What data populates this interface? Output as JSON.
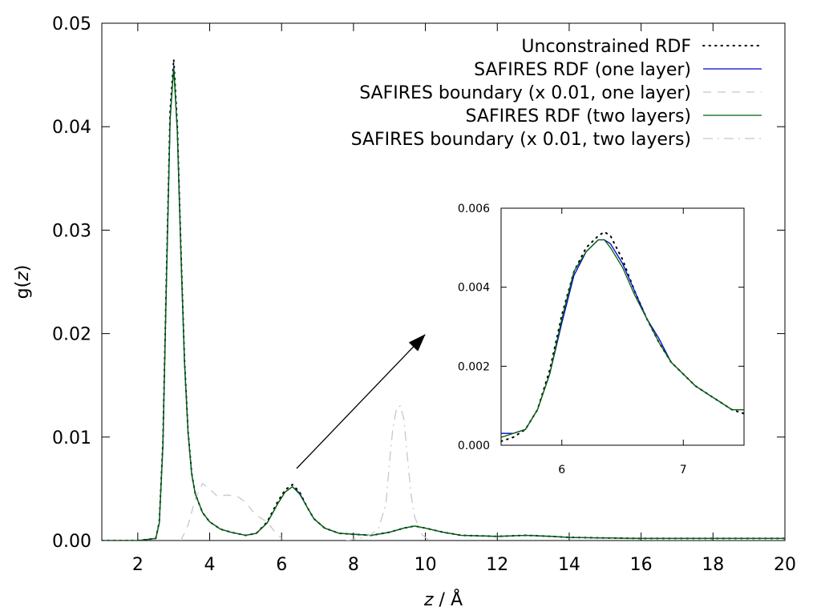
{
  "chart_data": [
    {
      "type": "line",
      "xlabel_var": "z",
      "xlabel_unit": " / Å",
      "ylabel_var": "z",
      "ylabel_prefix": "g(",
      "ylabel_suffix": ")",
      "xlim": [
        1,
        20
      ],
      "ylim": [
        0,
        0.05
      ],
      "xticks": [
        2,
        4,
        6,
        8,
        10,
        12,
        14,
        16,
        18,
        20
      ],
      "xtick_labels": [
        "2",
        "4",
        "6",
        "8",
        "10",
        "12",
        "14",
        "16",
        "18",
        "20"
      ],
      "yticks": [
        0,
        0.01,
        0.02,
        0.03,
        0.04,
        0.05
      ],
      "ytick_labels": [
        "0.00",
        "0.01",
        "0.02",
        "0.03",
        "0.04",
        "0.05"
      ],
      "legend_position": "top-right",
      "series": [
        {
          "name": "Unconstrained RDF",
          "color": "#000000",
          "style": "dotted",
          "x": [
            1.0,
            2.0,
            2.5,
            2.6,
            2.7,
            2.8,
            2.9,
            3.0,
            3.1,
            3.2,
            3.3,
            3.4,
            3.5,
            3.6,
            3.8,
            4.0,
            4.3,
            4.6,
            5.0,
            5.3,
            5.6,
            5.9,
            6.1,
            6.3,
            6.5,
            6.7,
            6.9,
            7.2,
            7.6,
            8.0,
            8.5,
            9.0,
            9.4,
            9.7,
            10.0,
            10.5,
            11.0,
            12.0,
            12.8,
            13.5,
            14.0,
            16.0,
            20.0
          ],
          "y": [
            0.0,
            0.0,
            0.0002,
            0.0018,
            0.0095,
            0.026,
            0.0415,
            0.0465,
            0.04,
            0.028,
            0.0175,
            0.0105,
            0.0065,
            0.0045,
            0.0027,
            0.0018,
            0.0011,
            0.0008,
            0.0005,
            0.0007,
            0.0018,
            0.0038,
            0.0049,
            0.0054,
            0.0047,
            0.0033,
            0.0021,
            0.0012,
            0.0007,
            0.0006,
            0.0005,
            0.0008,
            0.0012,
            0.0014,
            0.0012,
            0.0008,
            0.0005,
            0.0004,
            0.0005,
            0.0004,
            0.0003,
            0.0002,
            0.0002
          ]
        },
        {
          "name": "SAFIRES RDF (one layer)",
          "color": "#0000cc",
          "style": "solid",
          "x": [
            1.0,
            2.0,
            2.5,
            2.6,
            2.7,
            2.8,
            2.9,
            3.0,
            3.1,
            3.2,
            3.3,
            3.4,
            3.5,
            3.6,
            3.8,
            4.0,
            4.3,
            4.6,
            5.0,
            5.3,
            5.6,
            5.9,
            6.1,
            6.3,
            6.5,
            6.7,
            6.9,
            7.2,
            7.6,
            8.0,
            8.5,
            9.0,
            9.4,
            9.7,
            10.0,
            10.5,
            11.0,
            12.0,
            12.8,
            13.5,
            14.0,
            16.0,
            20.0
          ],
          "y": [
            0.0,
            0.0,
            0.0002,
            0.0017,
            0.0092,
            0.0255,
            0.0408,
            0.0458,
            0.0395,
            0.0277,
            0.0173,
            0.0104,
            0.0064,
            0.0045,
            0.0027,
            0.0018,
            0.0011,
            0.0008,
            0.0005,
            0.0007,
            0.0017,
            0.0036,
            0.0047,
            0.0052,
            0.0046,
            0.0033,
            0.0021,
            0.0012,
            0.0007,
            0.0006,
            0.0005,
            0.0008,
            0.0012,
            0.0014,
            0.0012,
            0.0008,
            0.0005,
            0.0004,
            0.0005,
            0.0004,
            0.0003,
            0.0002,
            0.0002
          ]
        },
        {
          "name": "SAFIRES boundary (x 0.01, one layer)",
          "color": "#c8c8c8",
          "style": "dashed",
          "x": [
            3.2,
            3.4,
            3.6,
            3.8,
            4.0,
            4.2,
            4.5,
            4.8,
            5.0,
            5.2,
            5.4,
            5.6,
            5.8,
            6.0
          ],
          "y": [
            0.0,
            0.0015,
            0.004,
            0.0055,
            0.005,
            0.0043,
            0.0044,
            0.0042,
            0.0037,
            0.0028,
            0.0022,
            0.0018,
            0.0009,
            0.0002
          ]
        },
        {
          "name": "SAFIRES RDF (two layers)",
          "color": "#006400",
          "style": "solid",
          "x": [
            1.0,
            2.0,
            2.5,
            2.6,
            2.7,
            2.8,
            2.9,
            3.0,
            3.1,
            3.2,
            3.3,
            3.4,
            3.5,
            3.6,
            3.8,
            4.0,
            4.3,
            4.6,
            5.0,
            5.3,
            5.6,
            5.9,
            6.1,
            6.3,
            6.5,
            6.7,
            6.9,
            7.2,
            7.6,
            8.0,
            8.5,
            9.0,
            9.4,
            9.7,
            10.0,
            10.5,
            11.0,
            12.0,
            12.8,
            13.5,
            14.0,
            16.0,
            20.0
          ],
          "y": [
            0.0,
            0.0,
            0.0002,
            0.0017,
            0.0092,
            0.0254,
            0.0407,
            0.0457,
            0.0394,
            0.0276,
            0.0172,
            0.0104,
            0.0064,
            0.0045,
            0.0027,
            0.0018,
            0.0011,
            0.0008,
            0.0005,
            0.0007,
            0.0017,
            0.0036,
            0.0047,
            0.0052,
            0.0045,
            0.0033,
            0.0021,
            0.0012,
            0.0007,
            0.0006,
            0.0005,
            0.0008,
            0.0012,
            0.0014,
            0.0012,
            0.0008,
            0.0005,
            0.0004,
            0.0005,
            0.0004,
            0.0003,
            0.0002,
            0.0002
          ]
        },
        {
          "name": "SAFIRES boundary (x 0.01, two layers)",
          "color": "#c8c8c8",
          "style": "dashdot",
          "x": [
            7.8,
            8.2,
            8.5,
            8.7,
            8.9,
            9.0,
            9.1,
            9.2,
            9.3,
            9.4,
            9.5,
            9.6,
            9.7,
            9.9,
            10.1
          ],
          "y": [
            0.0,
            0.0002,
            0.0006,
            0.0012,
            0.0035,
            0.0075,
            0.011,
            0.0128,
            0.013,
            0.0118,
            0.008,
            0.0045,
            0.0023,
            0.0006,
            0.0
          ]
        }
      ]
    },
    {
      "type": "line",
      "role": "inset",
      "xlim": [
        5.5,
        7.5
      ],
      "ylim": [
        0,
        0.006
      ],
      "xticks": [
        6,
        7
      ],
      "xtick_labels": [
        "6",
        "7"
      ],
      "yticks": [
        0,
        0.002,
        0.004,
        0.006
      ],
      "ytick_labels": [
        "0.000",
        "0.002",
        "0.004",
        "0.006"
      ],
      "series": [
        {
          "name": "Unconstrained RDF",
          "color": "#000000",
          "style": "dotted",
          "x": [
            5.5,
            5.6,
            5.7,
            5.8,
            5.9,
            6.0,
            6.1,
            6.2,
            6.3,
            6.35,
            6.4,
            6.5,
            6.6,
            6.7,
            6.8,
            6.9,
            7.0,
            7.1,
            7.2,
            7.3,
            7.4,
            7.5
          ],
          "y": [
            0.0001,
            0.0002,
            0.0004,
            0.0009,
            0.0019,
            0.0033,
            0.0044,
            0.005,
            0.0053,
            0.0054,
            0.0053,
            0.0047,
            0.0039,
            0.0032,
            0.0026,
            0.0021,
            0.0018,
            0.0015,
            0.0013,
            0.0011,
            0.0009,
            0.0008
          ]
        },
        {
          "name": "SAFIRES RDF (one layer)",
          "color": "#0000cc",
          "style": "solid",
          "x": [
            5.5,
            5.6,
            5.7,
            5.8,
            5.9,
            6.0,
            6.1,
            6.2,
            6.3,
            6.35,
            6.4,
            6.5,
            6.6,
            6.7,
            6.8,
            6.9,
            7.0,
            7.1,
            7.2,
            7.3,
            7.4,
            7.5
          ],
          "y": [
            0.0003,
            0.0003,
            0.0004,
            0.0009,
            0.0018,
            0.0031,
            0.0043,
            0.0049,
            0.0052,
            0.0052,
            0.0051,
            0.0046,
            0.0039,
            0.0032,
            0.0027,
            0.0021,
            0.0018,
            0.0015,
            0.0013,
            0.0011,
            0.0009,
            0.0009
          ]
        },
        {
          "name": "SAFIRES RDF (two layers)",
          "color": "#006400",
          "style": "solid",
          "x": [
            5.5,
            5.6,
            5.7,
            5.8,
            5.9,
            6.0,
            6.1,
            6.2,
            6.3,
            6.35,
            6.4,
            6.5,
            6.6,
            6.7,
            6.8,
            6.9,
            7.0,
            7.1,
            7.2,
            7.3,
            7.4,
            7.5
          ],
          "y": [
            0.0002,
            0.0003,
            0.0004,
            0.0009,
            0.0018,
            0.0032,
            0.0044,
            0.0049,
            0.0052,
            0.0052,
            0.005,
            0.0045,
            0.0038,
            0.0032,
            0.0026,
            0.0021,
            0.0018,
            0.0015,
            0.0013,
            0.0011,
            0.0009,
            0.0009
          ]
        }
      ]
    }
  ]
}
